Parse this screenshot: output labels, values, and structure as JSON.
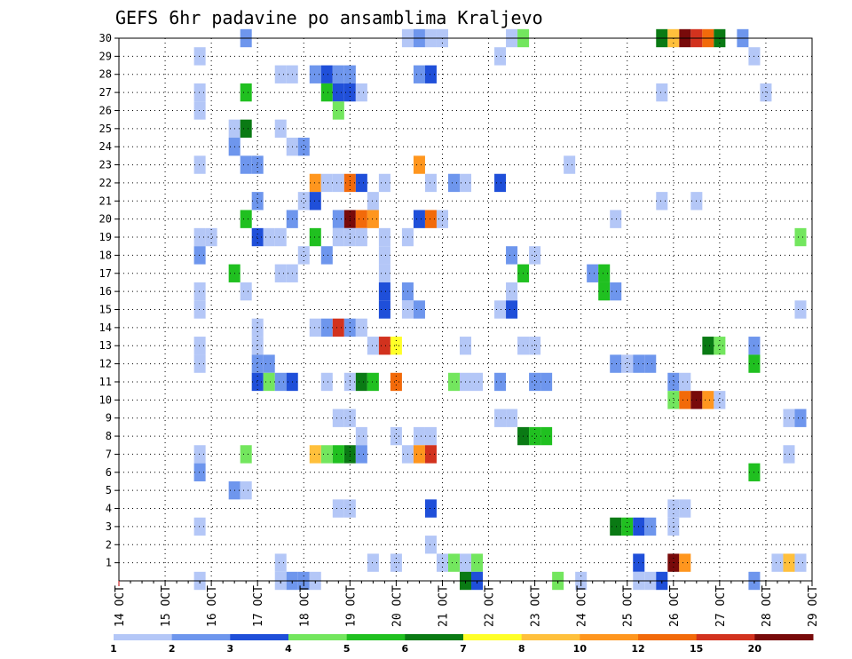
{
  "chart_data": {
    "type": "heatmap",
    "title": "GEFS 6hr padavine po ansamblima Kraljevo",
    "y_members": [
      1,
      2,
      3,
      4,
      5,
      6,
      7,
      8,
      9,
      10,
      11,
      12,
      13,
      14,
      15,
      16,
      17,
      18,
      19,
      20,
      21,
      22,
      23,
      24,
      25,
      26,
      27,
      28,
      29,
      30
    ],
    "x_dates": [
      "14 OCT",
      "15 OCT",
      "16 OCT",
      "17 OCT",
      "18 OCT",
      "19 OCT",
      "20 OCT",
      "21 OCT",
      "22 OCT",
      "23 OCT",
      "24 OCT",
      "25 OCT",
      "26 OCT",
      "27 OCT",
      "28 OCT",
      "29 OCT"
    ],
    "legend": {
      "labels": [
        "1",
        "2",
        "3",
        "4",
        "5",
        "6",
        "7",
        "8",
        "10",
        "12",
        "15",
        "20"
      ],
      "colors": [
        "#b4c7f7",
        "#6e96ed",
        "#1f4fd9",
        "#73e65e",
        "#20c020",
        "#0a7a14",
        "#ffff28",
        "#ffc03c",
        "#ff961e",
        "#f26a0a",
        "#d2321e",
        "#780a0a"
      ]
    },
    "step_hours": 6,
    "units": "mm",
    "cells": [
      {
        "m": 30,
        "t": "16 OCT 18Z",
        "v": 2
      },
      {
        "m": 30,
        "t": "20 OCT 06Z",
        "v": 1
      },
      {
        "m": 30,
        "t": "20 OCT 12Z",
        "v": 2
      },
      {
        "m": 30,
        "t": "20 OCT 18Z",
        "v": 1
      },
      {
        "m": 30,
        "t": "21 OCT 00Z",
        "v": 1
      },
      {
        "m": 30,
        "t": "22 OCT 12Z",
        "v": 1
      },
      {
        "m": 30,
        "t": "22 OCT 18Z",
        "v": 4
      },
      {
        "m": 30,
        "t": "25 OCT 18Z",
        "v": 6
      },
      {
        "m": 30,
        "t": "26 OCT 00Z",
        "v": 8
      },
      {
        "m": 30,
        "t": "26 OCT 06Z",
        "v": 20
      },
      {
        "m": 30,
        "t": "26 OCT 12Z",
        "v": 15
      },
      {
        "m": 30,
        "t": "26 OCT 18Z",
        "v": 12
      },
      {
        "m": 30,
        "t": "27 OCT 00Z",
        "v": 6
      },
      {
        "m": 30,
        "t": "27 OCT 12Z",
        "v": 2
      },
      {
        "m": 29,
        "t": "15 OCT 18Z",
        "v": 1
      },
      {
        "m": 29,
        "t": "22 OCT 06Z",
        "v": 1
      },
      {
        "m": 29,
        "t": "27 OCT 18Z",
        "v": 1
      },
      {
        "m": 28,
        "t": "17 OCT 12Z",
        "v": 1
      },
      {
        "m": 28,
        "t": "17 OCT 18Z",
        "v": 1
      },
      {
        "m": 28,
        "t": "18 OCT 06Z",
        "v": 2
      },
      {
        "m": 28,
        "t": "18 OCT 12Z",
        "v": 3
      },
      {
        "m": 28,
        "t": "18 OCT 18Z",
        "v": 2
      },
      {
        "m": 28,
        "t": "19 OCT 00Z",
        "v": 2
      },
      {
        "m": 28,
        "t": "20 OCT 12Z",
        "v": 2
      },
      {
        "m": 28,
        "t": "20 OCT 18Z",
        "v": 3
      },
      {
        "m": 27,
        "t": "15 OCT 18Z",
        "v": 1
      },
      {
        "m": 27,
        "t": "16 OCT 18Z",
        "v": 5
      },
      {
        "m": 27,
        "t": "18 OCT 12Z",
        "v": 5
      },
      {
        "m": 27,
        "t": "18 OCT 18Z",
        "v": 3
      },
      {
        "m": 27,
        "t": "19 OCT 00Z",
        "v": 3
      },
      {
        "m": 27,
        "t": "19 OCT 06Z",
        "v": 1
      },
      {
        "m": 27,
        "t": "25 OCT 18Z",
        "v": 1
      },
      {
        "m": 27,
        "t": "28 OCT 00Z",
        "v": 1
      },
      {
        "m": 26,
        "t": "15 OCT 18Z",
        "v": 1
      },
      {
        "m": 26,
        "t": "18 OCT 18Z",
        "v": 4
      },
      {
        "m": 25,
        "t": "16 OCT 12Z",
        "v": 1
      },
      {
        "m": 25,
        "t": "16 OCT 18Z",
        "v": 6
      },
      {
        "m": 25,
        "t": "17 OCT 12Z",
        "v": 1
      },
      {
        "m": 24,
        "t": "16 OCT 12Z",
        "v": 2
      },
      {
        "m": 24,
        "t": "17 OCT 18Z",
        "v": 1
      },
      {
        "m": 24,
        "t": "18 OCT 00Z",
        "v": 2
      },
      {
        "m": 23,
        "t": "15 OCT 18Z",
        "v": 1
      },
      {
        "m": 23,
        "t": "16 OCT 18Z",
        "v": 2
      },
      {
        "m": 23,
        "t": "17 OCT 00Z",
        "v": 2
      },
      {
        "m": 23,
        "t": "20 OCT 12Z",
        "v": 10
      },
      {
        "m": 23,
        "t": "23 OCT 18Z",
        "v": 1
      },
      {
        "m": 22,
        "t": "18 OCT 06Z",
        "v": 10
      },
      {
        "m": 22,
        "t": "18 OCT 12Z",
        "v": 1
      },
      {
        "m": 22,
        "t": "18 OCT 18Z",
        "v": 1
      },
      {
        "m": 22,
        "t": "19 OCT 00Z",
        "v": 12
      },
      {
        "m": 22,
        "t": "19 OCT 06Z",
        "v": 3
      },
      {
        "m": 22,
        "t": "19 OCT 18Z",
        "v": 1
      },
      {
        "m": 22,
        "t": "20 OCT 18Z",
        "v": 1
      },
      {
        "m": 22,
        "t": "21 OCT 06Z",
        "v": 2
      },
      {
        "m": 22,
        "t": "21 OCT 12Z",
        "v": 1
      },
      {
        "m": 22,
        "t": "22 OCT 06Z",
        "v": 3
      },
      {
        "m": 21,
        "t": "17 OCT 00Z",
        "v": 2
      },
      {
        "m": 21,
        "t": "18 OCT 00Z",
        "v": 1
      },
      {
        "m": 21,
        "t": "18 OCT 06Z",
        "v": 3
      },
      {
        "m": 21,
        "t": "19 OCT 12Z",
        "v": 1
      },
      {
        "m": 21,
        "t": "25 OCT 18Z",
        "v": 1
      },
      {
        "m": 21,
        "t": "26 OCT 12Z",
        "v": 1
      },
      {
        "m": 20,
        "t": "16 OCT 18Z",
        "v": 5
      },
      {
        "m": 20,
        "t": "17 OCT 18Z",
        "v": 2
      },
      {
        "m": 20,
        "t": "18 OCT 18Z",
        "v": 2
      },
      {
        "m": 20,
        "t": "19 OCT 00Z",
        "v": 20
      },
      {
        "m": 20,
        "t": "19 OCT 06Z",
        "v": 12
      },
      {
        "m": 20,
        "t": "19 OCT 12Z",
        "v": 10
      },
      {
        "m": 20,
        "t": "20 OCT 12Z",
        "v": 3
      },
      {
        "m": 20,
        "t": "20 OCT 18Z",
        "v": 12
      },
      {
        "m": 20,
        "t": "21 OCT 00Z",
        "v": 1
      },
      {
        "m": 20,
        "t": "24 OCT 18Z",
        "v": 1
      },
      {
        "m": 19,
        "t": "15 OCT 18Z",
        "v": 1
      },
      {
        "m": 19,
        "t": "16 OCT 00Z",
        "v": 1
      },
      {
        "m": 19,
        "t": "17 OCT 00Z",
        "v": 3
      },
      {
        "m": 19,
        "t": "17 OCT 06Z",
        "v": 1
      },
      {
        "m": 19,
        "t": "17 OCT 12Z",
        "v": 1
      },
      {
        "m": 19,
        "t": "18 OCT 06Z",
        "v": 5
      },
      {
        "m": 19,
        "t": "18 OCT 18Z",
        "v": 1
      },
      {
        "m": 19,
        "t": "19 OCT 00Z",
        "v": 1
      },
      {
        "m": 19,
        "t": "19 OCT 06Z",
        "v": 1
      },
      {
        "m": 19,
        "t": "19 OCT 18Z",
        "v": 1
      },
      {
        "m": 19,
        "t": "20 OCT 06Z",
        "v": 1
      },
      {
        "m": 19,
        "t": "28 OCT 18Z",
        "v": 4
      },
      {
        "m": 18,
        "t": "15 OCT 18Z",
        "v": 2
      },
      {
        "m": 18,
        "t": "18 OCT 00Z",
        "v": 1
      },
      {
        "m": 18,
        "t": "18 OCT 12Z",
        "v": 2
      },
      {
        "m": 18,
        "t": "19 OCT 18Z",
        "v": 1
      },
      {
        "m": 18,
        "t": "22 OCT 12Z",
        "v": 2
      },
      {
        "m": 18,
        "t": "23 OCT 00Z",
        "v": 1
      },
      {
        "m": 17,
        "t": "16 OCT 12Z",
        "v": 5
      },
      {
        "m": 17,
        "t": "17 OCT 12Z",
        "v": 1
      },
      {
        "m": 17,
        "t": "17 OCT 18Z",
        "v": 1
      },
      {
        "m": 17,
        "t": "19 OCT 18Z",
        "v": 1
      },
      {
        "m": 17,
        "t": "22 OCT 18Z",
        "v": 5
      },
      {
        "m": 17,
        "t": "24 OCT 06Z",
        "v": 2
      },
      {
        "m": 17,
        "t": "24 OCT 12Z",
        "v": 5
      },
      {
        "m": 16,
        "t": "15 OCT 18Z",
        "v": 1
      },
      {
        "m": 16,
        "t": "16 OCT 18Z",
        "v": 1
      },
      {
        "m": 16,
        "t": "19 OCT 18Z",
        "v": 3
      },
      {
        "m": 16,
        "t": "20 OCT 06Z",
        "v": 2
      },
      {
        "m": 16,
        "t": "22 OCT 12Z",
        "v": 1
      },
      {
        "m": 16,
        "t": "24 OCT 12Z",
        "v": 5
      },
      {
        "m": 16,
        "t": "24 OCT 18Z",
        "v": 2
      },
      {
        "m": 15,
        "t": "15 OCT 18Z",
        "v": 1
      },
      {
        "m": 15,
        "t": "19 OCT 18Z",
        "v": 3
      },
      {
        "m": 15,
        "t": "20 OCT 06Z",
        "v": 1
      },
      {
        "m": 15,
        "t": "20 OCT 12Z",
        "v": 2
      },
      {
        "m": 15,
        "t": "22 OCT 06Z",
        "v": 1
      },
      {
        "m": 15,
        "t": "22 OCT 12Z",
        "v": 3
      },
      {
        "m": 15,
        "t": "28 OCT 18Z",
        "v": 1
      },
      {
        "m": 14,
        "t": "17 OCT 00Z",
        "v": 1
      },
      {
        "m": 14,
        "t": "18 OCT 06Z",
        "v": 1
      },
      {
        "m": 14,
        "t": "18 OCT 12Z",
        "v": 2
      },
      {
        "m": 14,
        "t": "18 OCT 18Z",
        "v": 15
      },
      {
        "m": 14,
        "t": "19 OCT 00Z",
        "v": 2
      },
      {
        "m": 14,
        "t": "19 OCT 06Z",
        "v": 1
      },
      {
        "m": 13,
        "t": "15 OCT 18Z",
        "v": 1
      },
      {
        "m": 13,
        "t": "17 OCT 00Z",
        "v": 1
      },
      {
        "m": 13,
        "t": "19 OCT 12Z",
        "v": 1
      },
      {
        "m": 13,
        "t": "19 OCT 18Z",
        "v": 15
      },
      {
        "m": 13,
        "t": "20 OCT 00Z",
        "v": 7
      },
      {
        "m": 13,
        "t": "21 OCT 12Z",
        "v": 1
      },
      {
        "m": 13,
        "t": "22 OCT 18Z",
        "v": 1
      },
      {
        "m": 13,
        "t": "23 OCT 00Z",
        "v": 1
      },
      {
        "m": 13,
        "t": "26 OCT 18Z",
        "v": 6
      },
      {
        "m": 13,
        "t": "27 OCT 00Z",
        "v": 4
      },
      {
        "m": 13,
        "t": "27 OCT 18Z",
        "v": 2
      },
      {
        "m": 12,
        "t": "15 OCT 18Z",
        "v": 1
      },
      {
        "m": 12,
        "t": "17 OCT 00Z",
        "v": 2
      },
      {
        "m": 12,
        "t": "17 OCT 06Z",
        "v": 2
      },
      {
        "m": 12,
        "t": "24 OCT 18Z",
        "v": 2
      },
      {
        "m": 12,
        "t": "25 OCT 00Z",
        "v": 1
      },
      {
        "m": 12,
        "t": "25 OCT 06Z",
        "v": 2
      },
      {
        "m": 12,
        "t": "25 OCT 12Z",
        "v": 2
      },
      {
        "m": 12,
        "t": "27 OCT 18Z",
        "v": 5
      },
      {
        "m": 11,
        "t": "17 OCT 00Z",
        "v": 3
      },
      {
        "m": 11,
        "t": "17 OCT 06Z",
        "v": 4
      },
      {
        "m": 11,
        "t": "17 OCT 12Z",
        "v": 2
      },
      {
        "m": 11,
        "t": "17 OCT 18Z",
        "v": 3
      },
      {
        "m": 11,
        "t": "18 OCT 12Z",
        "v": 1
      },
      {
        "m": 11,
        "t": "19 OCT 00Z",
        "v": 1
      },
      {
        "m": 11,
        "t": "19 OCT 06Z",
        "v": 6
      },
      {
        "m": 11,
        "t": "19 OCT 12Z",
        "v": 5
      },
      {
        "m": 11,
        "t": "20 OCT 00Z",
        "v": 12
      },
      {
        "m": 11,
        "t": "21 OCT 06Z",
        "v": 4
      },
      {
        "m": 11,
        "t": "21 OCT 12Z",
        "v": 1
      },
      {
        "m": 11,
        "t": "21 OCT 18Z",
        "v": 1
      },
      {
        "m": 11,
        "t": "22 OCT 06Z",
        "v": 2
      },
      {
        "m": 11,
        "t": "23 OCT 00Z",
        "v": 2
      },
      {
        "m": 11,
        "t": "23 OCT 06Z",
        "v": 2
      },
      {
        "m": 11,
        "t": "26 OCT 00Z",
        "v": 2
      },
      {
        "m": 11,
        "t": "26 OCT 06Z",
        "v": 1
      },
      {
        "m": 10,
        "t": "26 OCT 00Z",
        "v": 4
      },
      {
        "m": 10,
        "t": "26 OCT 06Z",
        "v": 12
      },
      {
        "m": 10,
        "t": "26 OCT 12Z",
        "v": 20
      },
      {
        "m": 10,
        "t": "26 OCT 18Z",
        "v": 10
      },
      {
        "m": 10,
        "t": "27 OCT 00Z",
        "v": 1
      },
      {
        "m": 9,
        "t": "18 OCT 18Z",
        "v": 1
      },
      {
        "m": 9,
        "t": "19 OCT 00Z",
        "v": 1
      },
      {
        "m": 9,
        "t": "22 OCT 06Z",
        "v": 1
      },
      {
        "m": 9,
        "t": "22 OCT 12Z",
        "v": 1
      },
      {
        "m": 9,
        "t": "28 OCT 12Z",
        "v": 1
      },
      {
        "m": 9,
        "t": "28 OCT 18Z",
        "v": 2
      },
      {
        "m": 8,
        "t": "19 OCT 06Z",
        "v": 1
      },
      {
        "m": 8,
        "t": "20 OCT 00Z",
        "v": 1
      },
      {
        "m": 8,
        "t": "20 OCT 12Z",
        "v": 1
      },
      {
        "m": 8,
        "t": "20 OCT 18Z",
        "v": 1
      },
      {
        "m": 8,
        "t": "22 OCT 18Z",
        "v": 6
      },
      {
        "m": 8,
        "t": "23 OCT 00Z",
        "v": 5
      },
      {
        "m": 8,
        "t": "23 OCT 06Z",
        "v": 5
      },
      {
        "m": 7,
        "t": "15 OCT 18Z",
        "v": 1
      },
      {
        "m": 7,
        "t": "16 OCT 18Z",
        "v": 4
      },
      {
        "m": 7,
        "t": "18 OCT 06Z",
        "v": 8
      },
      {
        "m": 7,
        "t": "18 OCT 12Z",
        "v": 4
      },
      {
        "m": 7,
        "t": "18 OCT 18Z",
        "v": 5
      },
      {
        "m": 7,
        "t": "19 OCT 00Z",
        "v": 6
      },
      {
        "m": 7,
        "t": "19 OCT 06Z",
        "v": 2
      },
      {
        "m": 7,
        "t": "20 OCT 06Z",
        "v": 1
      },
      {
        "m": 7,
        "t": "20 OCT 12Z",
        "v": 10
      },
      {
        "m": 7,
        "t": "20 OCT 18Z",
        "v": 15
      },
      {
        "m": 7,
        "t": "28 OCT 12Z",
        "v": 1
      },
      {
        "m": 6,
        "t": "15 OCT 18Z",
        "v": 2
      },
      {
        "m": 6,
        "t": "27 OCT 18Z",
        "v": 5
      },
      {
        "m": 5,
        "t": "16 OCT 12Z",
        "v": 2
      },
      {
        "m": 5,
        "t": "16 OCT 18Z",
        "v": 1
      },
      {
        "m": 4,
        "t": "18 OCT 18Z",
        "v": 1
      },
      {
        "m": 4,
        "t": "19 OCT 00Z",
        "v": 1
      },
      {
        "m": 4,
        "t": "20 OCT 18Z",
        "v": 3
      },
      {
        "m": 4,
        "t": "26 OCT 00Z",
        "v": 1
      },
      {
        "m": 4,
        "t": "26 OCT 06Z",
        "v": 1
      },
      {
        "m": 3,
        "t": "15 OCT 18Z",
        "v": 1
      },
      {
        "m": 3,
        "t": "24 OCT 18Z",
        "v": 6
      },
      {
        "m": 3,
        "t": "25 OCT 00Z",
        "v": 5
      },
      {
        "m": 3,
        "t": "25 OCT 06Z",
        "v": 3
      },
      {
        "m": 3,
        "t": "25 OCT 12Z",
        "v": 2
      },
      {
        "m": 3,
        "t": "26 OCT 00Z",
        "v": 1
      },
      {
        "m": 2,
        "t": "20 OCT 18Z",
        "v": 1
      },
      {
        "m": 1,
        "t": "17 OCT 12Z",
        "v": 1
      },
      {
        "m": 1,
        "t": "19 OCT 12Z",
        "v": 1
      },
      {
        "m": 1,
        "t": "20 OCT 00Z",
        "v": 1
      },
      {
        "m": 1,
        "t": "21 OCT 00Z",
        "v": 1
      },
      {
        "m": 1,
        "t": "21 OCT 06Z",
        "v": 4
      },
      {
        "m": 1,
        "t": "21 OCT 12Z",
        "v": 1
      },
      {
        "m": 1,
        "t": "21 OCT 18Z",
        "v": 4
      },
      {
        "m": 1,
        "t": "25 OCT 06Z",
        "v": 3
      },
      {
        "m": 1,
        "t": "26 OCT 00Z",
        "v": 20
      },
      {
        "m": 1,
        "t": "26 OCT 06Z",
        "v": 10
      },
      {
        "m": 1,
        "t": "28 OCT 06Z",
        "v": 1
      },
      {
        "m": 1,
        "t": "28 OCT 12Z",
        "v": 8
      },
      {
        "m": 1,
        "t": "28 OCT 18Z",
        "v": 1
      },
      {
        "m": 0,
        "t": "15 OCT 18Z",
        "v": 1
      },
      {
        "m": 0,
        "t": "17 OCT 12Z",
        "v": 1
      },
      {
        "m": 0,
        "t": "17 OCT 18Z",
        "v": 2
      },
      {
        "m": 0,
        "t": "18 OCT 00Z",
        "v": 2
      },
      {
        "m": 0,
        "t": "18 OCT 06Z",
        "v": 1
      },
      {
        "m": 0,
        "t": "21 OCT 12Z",
        "v": 6
      },
      {
        "m": 0,
        "t": "21 OCT 18Z",
        "v": 3
      },
      {
        "m": 0,
        "t": "23 OCT 12Z",
        "v": 4
      },
      {
        "m": 0,
        "t": "24 OCT 00Z",
        "v": 1
      },
      {
        "m": 0,
        "t": "25 OCT 06Z",
        "v": 1
      },
      {
        "m": 0,
        "t": "25 OCT 12Z",
        "v": 1
      },
      {
        "m": 0,
        "t": "25 OCT 18Z",
        "v": 3
      },
      {
        "m": 0,
        "t": "27 OCT 18Z",
        "v": 2
      }
    ]
  }
}
